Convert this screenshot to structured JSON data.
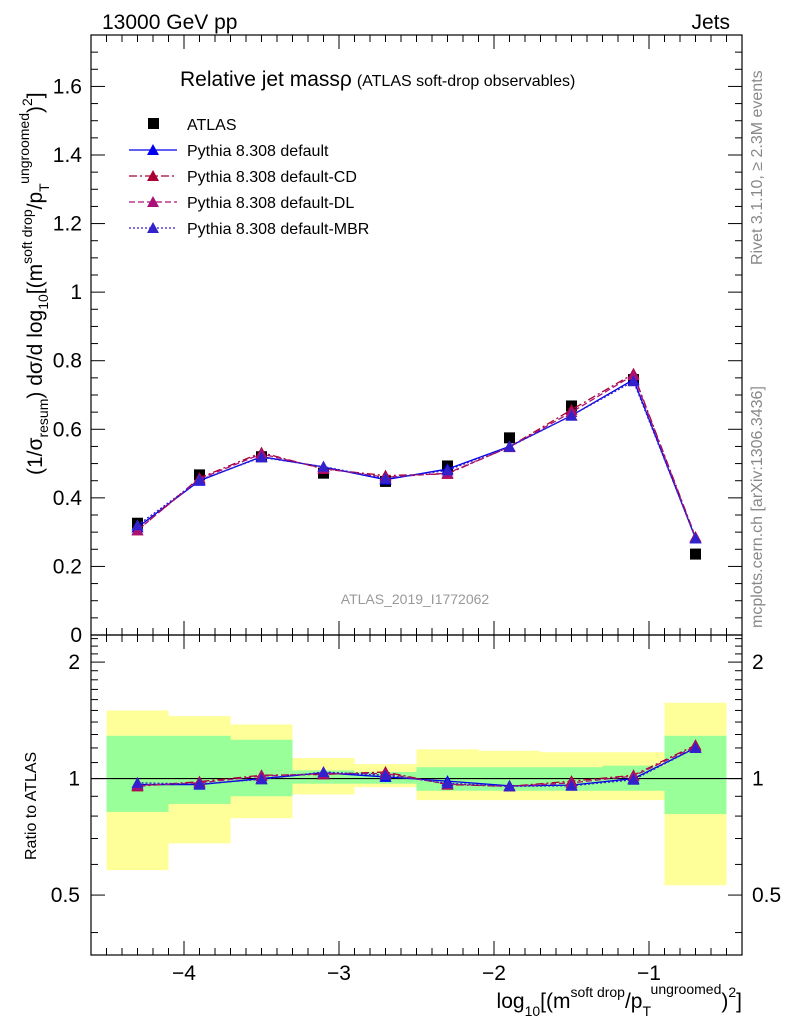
{
  "header": {
    "left": "13000 GeV pp",
    "right": "Jets"
  },
  "side_labels": {
    "top": "Rivet 3.1.10, ≥ 2.3M events",
    "bottom": "mcplots.cern.ch [arXiv:1306.3436]"
  },
  "watermark": "ATLAS_2019_I1772062",
  "chart_data": {
    "type": "line",
    "title": "Relative jet massρ",
    "subtitle": "(ATLAS soft-drop observables)",
    "x_bin_edges": [
      -4.5,
      -4.1,
      -3.7,
      -3.3,
      -2.9,
      -2.5,
      -2.1,
      -1.7,
      -1.3,
      -0.9,
      -0.5
    ],
    "x_centers": [
      -4.3,
      -3.9,
      -3.5,
      -3.1,
      -2.7,
      -2.3,
      -1.9,
      -1.5,
      -1.1,
      -0.7
    ],
    "xlim": [
      -4.6,
      -0.4
    ],
    "xlabel": {
      "base": "log",
      "sub": "10",
      "pre": "[(m",
      "sup1": "soft drop",
      "mid": "/p",
      "sub2": "T",
      "sup2": "ungroomed",
      "post": ")",
      "sup3": "2",
      "end": "]"
    },
    "xticks": [
      -4,
      -3,
      -2,
      -1
    ],
    "xtick_labels": [
      "−4",
      "−3",
      "−2",
      "−1"
    ],
    "main": {
      "ylim": [
        0,
        1.75
      ],
      "yticks": [
        0,
        0.2,
        0.4,
        0.6,
        0.8,
        1,
        1.2,
        1.4,
        1.6
      ],
      "ytick_labels": [
        "0",
        "0.2",
        "0.4",
        "0.6",
        "0.8",
        "1",
        "1.2",
        "1.4",
        "1.6"
      ],
      "ylabel": {
        "p1": "(1/σ",
        "p1sub": "resum",
        "p2": ") dσ/d log",
        "p2sub": "10",
        "p3": "[(m",
        "sup1": "soft drop",
        "p4": "/p",
        "sub2": "T",
        "sup2": "ungroomed",
        "p5": ")",
        "sup3": "2",
        "p6": "]"
      }
    },
    "ratio": {
      "ylim": [
        0.35,
        2.35
      ],
      "yticks": [
        0.5,
        1,
        2
      ],
      "ytick_labels": [
        "0.5",
        "1",
        "2"
      ],
      "ylabel": "Ratio to ATLAS",
      "band_inner_low": [
        0.82,
        0.86,
        0.9,
        0.97,
        0.97,
        0.93,
        0.93,
        0.93,
        0.93,
        0.81
      ],
      "band_inner_high": [
        1.29,
        1.29,
        1.26,
        1.05,
        1.04,
        1.07,
        1.07,
        1.07,
        1.08,
        1.29
      ],
      "band_outer_low": [
        0.58,
        0.68,
        0.79,
        0.91,
        0.95,
        0.88,
        0.88,
        0.88,
        0.88,
        0.53
      ],
      "band_outer_high": [
        1.5,
        1.45,
        1.38,
        1.13,
        1.09,
        1.19,
        1.18,
        1.17,
        1.17,
        1.57
      ]
    },
    "series": [
      {
        "name": "ATLAS",
        "color": "#000000",
        "marker": "square",
        "values": [
          0.326,
          0.467,
          0.52,
          0.472,
          0.448,
          0.493,
          0.575,
          0.668,
          0.745,
          0.236
        ]
      },
      {
        "name": "Pythia 8.308 default",
        "color": "#0000ee",
        "marker": "triangle",
        "dash": "solid",
        "values": [
          0.314,
          0.45,
          0.52,
          0.49,
          0.453,
          0.484,
          0.55,
          0.64,
          0.745,
          0.282
        ],
        "ratio": [
          0.965,
          0.965,
          1.0,
          1.035,
          1.01,
          0.985,
          0.958,
          0.962,
          1.0,
          1.2
        ]
      },
      {
        "name": "Pythia 8.308 default-CD",
        "color": "#aa0033",
        "marker": "triangle",
        "dash": "8,3,2,3",
        "values": [
          0.305,
          0.458,
          0.532,
          0.484,
          0.465,
          0.47,
          0.549,
          0.657,
          0.762,
          0.286
        ],
        "ratio": [
          0.955,
          0.982,
          1.02,
          1.025,
          1.04,
          0.965,
          0.955,
          0.985,
          1.02,
          1.22
        ]
      },
      {
        "name": "Pythia 8.308 default-DL",
        "color": "#aa1177",
        "marker": "triangle",
        "dash": "6,3",
        "values": [
          0.306,
          0.455,
          0.528,
          0.486,
          0.46,
          0.472,
          0.548,
          0.65,
          0.758,
          0.284
        ],
        "ratio": [
          0.96,
          0.975,
          1.015,
          1.03,
          1.03,
          0.968,
          0.955,
          0.975,
          1.015,
          1.21
        ]
      },
      {
        "name": "Pythia 8.308 default-MBR",
        "color": "#3322cc",
        "marker": "triangle",
        "dash": "2,2",
        "values": [
          0.32,
          0.452,
          0.518,
          0.491,
          0.456,
          0.48,
          0.549,
          0.64,
          0.74,
          0.282
        ],
        "ratio": [
          0.975,
          0.968,
          0.995,
          1.04,
          1.02,
          0.973,
          0.955,
          0.958,
          0.993,
          1.2
        ]
      }
    ]
  }
}
